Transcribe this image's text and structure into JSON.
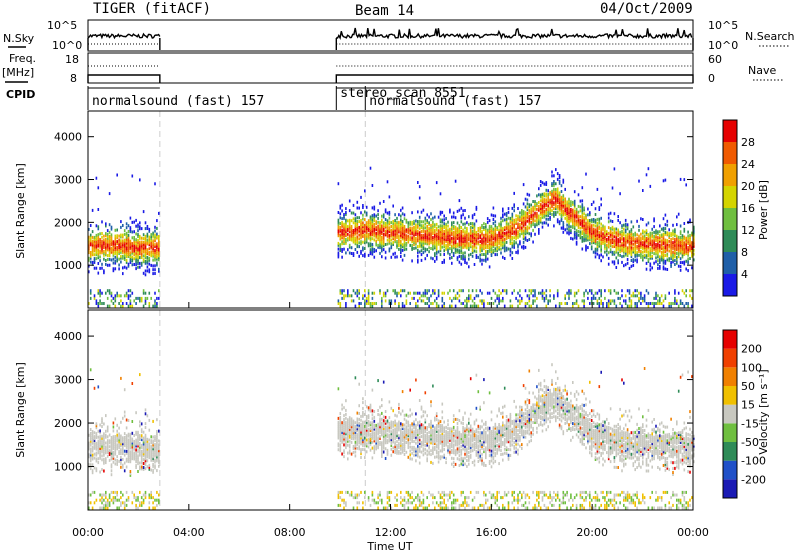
{
  "header": {
    "title": "TIGER (fitACF)",
    "beam": "Beam 14",
    "date": "04/Oct/2009"
  },
  "top_panels": {
    "nsky_label": "N.Sky",
    "nsky_ticks": [
      "10^5",
      "10^0"
    ],
    "nsearch_label": "N.Search",
    "nsearch_ticks": [
      "10^5",
      "10^0"
    ],
    "freq_label": "Freq.",
    "freq_unit": "[MHz]",
    "freq_ticks": [
      "18",
      "8"
    ],
    "nave_label": "Nave",
    "nave_ticks": [
      "60",
      "0"
    ],
    "cpid_label": "CPID",
    "cpid_segments": [
      {
        "label": "normalsound (fast) 157",
        "start_h": 0.0,
        "end_h": 2.85
      },
      {
        "label": "stereo_scan 8551",
        "start_h": 9.85,
        "end_h": 11.0
      },
      {
        "label": "normalsound (fast) 157",
        "start_h": 11.0,
        "end_h": 24.0
      }
    ],
    "data_gaps": [
      {
        "start_h": 2.85,
        "end_h": 9.85
      }
    ]
  },
  "power_panel": {
    "ylabel": "Slant Range [km]",
    "yticks": [
      "1000",
      "2000",
      "3000",
      "4000"
    ],
    "ylim": [
      0,
      4600
    ],
    "colorbar_title": "Power [dB]",
    "colorbar_ticks": [
      "4",
      "8",
      "12",
      "16",
      "20",
      "24",
      "28"
    ],
    "colors": [
      "#1a1ae6",
      "#1f5fa8",
      "#2e8b57",
      "#6fbf3f",
      "#d4d400",
      "#f0a000",
      "#f05a00",
      "#e60000"
    ]
  },
  "velocity_panel": {
    "ylabel": "Slant Range [km]",
    "yticks": [
      "1000",
      "2000",
      "3000",
      "4000"
    ],
    "ylim": [
      0,
      4600
    ],
    "colorbar_title": "Velocity [m s⁻¹]",
    "colorbar_ticks": [
      "200",
      "100",
      "50",
      "15",
      "-15",
      "-50",
      "-100",
      "-200"
    ],
    "colors": [
      "#1a1ab4",
      "#2050c8",
      "#2e8b57",
      "#6fbf3f",
      "#c8c8c0",
      "#f0c000",
      "#f08000",
      "#f04000",
      "#e60000"
    ]
  },
  "xaxis": {
    "ticks": [
      "00:00",
      "04:00",
      "08:00",
      "12:00",
      "16:00",
      "20:00",
      "00:00"
    ],
    "label": "Time UT"
  },
  "chart_data": {
    "type": "heatmap",
    "x_unit": "hours UT",
    "xlim": [
      0,
      24
    ],
    "ylim": [
      0,
      4600
    ],
    "scatter_band_center_km": [
      {
        "x": 0.0,
        "y": 1500
      },
      {
        "x": 1.0,
        "y": 1500
      },
      {
        "x": 2.0,
        "y": 1450
      },
      {
        "x": 2.8,
        "y": 1450
      },
      {
        "x": 9.9,
        "y": 1800
      },
      {
        "x": 11.0,
        "y": 1850
      },
      {
        "x": 12.0,
        "y": 1800
      },
      {
        "x": 13.0,
        "y": 1750
      },
      {
        "x": 14.0,
        "y": 1700
      },
      {
        "x": 15.0,
        "y": 1650
      },
      {
        "x": 16.0,
        "y": 1650
      },
      {
        "x": 17.0,
        "y": 1900
      },
      {
        "x": 18.0,
        "y": 2400
      },
      {
        "x": 18.5,
        "y": 2600
      },
      {
        "x": 19.0,
        "y": 2300
      },
      {
        "x": 20.0,
        "y": 1800
      },
      {
        "x": 21.0,
        "y": 1600
      },
      {
        "x": 22.0,
        "y": 1550
      },
      {
        "x": 23.0,
        "y": 1500
      },
      {
        "x": 24.0,
        "y": 1500
      }
    ]
  }
}
